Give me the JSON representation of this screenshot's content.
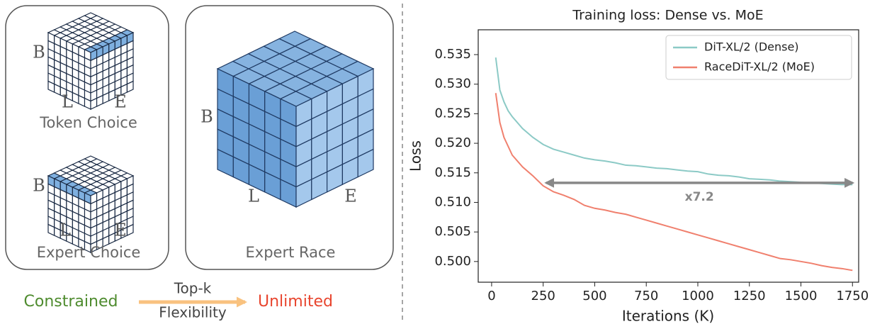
{
  "diagram": {
    "token_choice": {
      "b": "B",
      "l": "L",
      "e": "E",
      "caption": "Token Choice"
    },
    "expert_choice": {
      "b": "B",
      "l": "L",
      "e": "E",
      "caption": "Expert Choice"
    },
    "expert_race": {
      "b": "B",
      "l": "L",
      "e": "E",
      "caption": "Expert Race"
    },
    "scale": {
      "left": "Constrained",
      "top": "Top-k",
      "bottom": "Flexibility",
      "right": "Unlimited"
    }
  },
  "chart_data": {
    "type": "line",
    "title": "Training loss: Dense vs. MoE",
    "x_label": "Iterations (K)",
    "y_label": "Loss",
    "x": [
      20,
      40,
      60,
      80,
      100,
      150,
      200,
      250,
      300,
      350,
      400,
      450,
      500,
      550,
      600,
      650,
      700,
      750,
      800,
      850,
      900,
      950,
      1000,
      1050,
      1100,
      1150,
      1200,
      1250,
      1300,
      1350,
      1400,
      1450,
      1500,
      1550,
      1600,
      1650,
      1700,
      1750
    ],
    "series": [
      {
        "name": "DiT-XL/2 (Dense)",
        "color": "#8ccac6",
        "values": [
          0.5345,
          0.529,
          0.527,
          0.5255,
          0.5245,
          0.5225,
          0.521,
          0.5198,
          0.519,
          0.5185,
          0.518,
          0.5175,
          0.5172,
          0.517,
          0.5167,
          0.5163,
          0.5162,
          0.516,
          0.5158,
          0.5157,
          0.5155,
          0.5153,
          0.5152,
          0.5148,
          0.5146,
          0.5145,
          0.5143,
          0.514,
          0.5139,
          0.5138,
          0.5136,
          0.5135,
          0.5134,
          0.5133,
          0.5132,
          0.5131,
          0.513,
          0.513
        ]
      },
      {
        "name": "RaceDiT-XL/2 (MoE)",
        "color": "#f0806e",
        "values": [
          0.5285,
          0.5235,
          0.521,
          0.5195,
          0.518,
          0.516,
          0.5145,
          0.5128,
          0.5118,
          0.5112,
          0.5105,
          0.5095,
          0.509,
          0.5087,
          0.5083,
          0.508,
          0.5075,
          0.507,
          0.5065,
          0.506,
          0.5055,
          0.505,
          0.5045,
          0.504,
          0.5035,
          0.503,
          0.5025,
          0.502,
          0.5015,
          0.501,
          0.5005,
          0.5003,
          0.5,
          0.4997,
          0.4993,
          0.499,
          0.4988,
          0.4985
        ]
      }
    ],
    "xlim": [
      -65,
      1780
    ],
    "ylim": [
      0.4965,
      0.5392
    ],
    "xticks": [
      0,
      250,
      500,
      750,
      1000,
      1250,
      1500,
      1750
    ],
    "yticks": [
      {
        "value": 0.5,
        "label": "0.500"
      },
      0.505,
      {
        "value": 0.51,
        "label": "0.510"
      },
      0.515,
      {
        "value": 0.52,
        "label": "0.520"
      },
      0.525,
      {
        "value": 0.53,
        "label": "0.530"
      },
      0.535
    ],
    "legend": "upper right",
    "arrow": {
      "x_start": 265,
      "x_end": 1750,
      "y": 0.5133,
      "label": "x7.2",
      "color": "#888888"
    }
  }
}
